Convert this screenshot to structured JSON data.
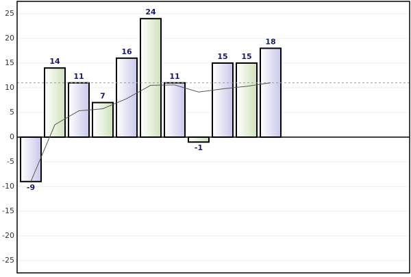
{
  "chart_data": {
    "type": "bar",
    "categories": [
      null,
      null,
      null,
      null,
      null,
      null,
      null,
      null,
      null,
      null,
      null
    ],
    "values": [
      -9,
      14,
      11,
      7,
      16,
      24,
      11,
      -1,
      15,
      15,
      18
    ],
    "colors": [
      "#dcdcf2",
      "#e0edd2"
    ],
    "running_average": [
      -9,
      2.5,
      5.33,
      5.75,
      7.8,
      10.5,
      10.57,
      9.13,
      9.78,
      10.3,
      11
    ],
    "running_average_color": "#555555",
    "mean": 11,
    "mean_color": "#999999",
    "ylim": [
      -27.5,
      27.5
    ],
    "yticks": [
      -25,
      -20,
      -15,
      -10,
      -5,
      0,
      5,
      10,
      15,
      20,
      25
    ],
    "grid": true
  }
}
